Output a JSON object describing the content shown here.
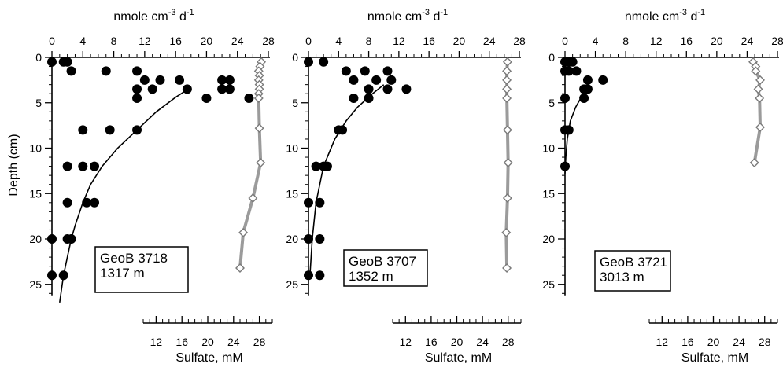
{
  "figure": {
    "top_axis_label": "nmole cm",
    "top_axis_sup1": "-3",
    "top_axis_mid": " d",
    "top_axis_sup2": "-1",
    "y_axis_label": "Depth (cm)",
    "bottom_axis_label": "Sulfate, mM",
    "colors": {
      "rate_points": "#000000",
      "sulfate_line": "#9b9b9b",
      "sulfate_marker": "#7a7a7a",
      "fit_line": "#000000"
    }
  },
  "chart_data": [
    {
      "type": "scatter",
      "site_label": "GeoB 3718",
      "water_depth": "1317 m",
      "top_axis": {
        "label": "nmole cm-3 d-1",
        "lim": [
          0,
          28
        ],
        "ticks": [
          "0",
          "4",
          "8",
          "12",
          "16",
          "20",
          "24",
          "28"
        ]
      },
      "depth_axis": {
        "label": "Depth (cm)",
        "lim": [
          0,
          25
        ],
        "inverted": true,
        "ticks": [
          "0",
          "5",
          "10",
          "15",
          "20",
          "25"
        ]
      },
      "sulfate_axis": {
        "label": "Sulfate, mM",
        "lim": [
          10,
          30
        ],
        "ticks": [
          "12",
          "16",
          "20",
          "24",
          "28"
        ]
      },
      "series": [
        {
          "name": "rate",
          "marker": "filled-circle",
          "points": [
            [
              0,
              0.5
            ],
            [
              1.5,
              0.5
            ],
            [
              2,
              0.5
            ],
            [
              2.5,
              1.5
            ],
            [
              7,
              1.5
            ],
            [
              11,
              1.5
            ],
            [
              12,
              2.5
            ],
            [
              14,
              2.5
            ],
            [
              16.5,
              2.5
            ],
            [
              11,
              3.5
            ],
            [
              13,
              3.5
            ],
            [
              17.5,
              3.5
            ],
            [
              11,
              4.5
            ],
            [
              20,
              4.5
            ],
            [
              25.5,
              4.5
            ],
            [
              4,
              8
            ],
            [
              7.5,
              8
            ],
            [
              11,
              8
            ],
            [
              2,
              12
            ],
            [
              4,
              12
            ],
            [
              5.5,
              12
            ],
            [
              2,
              16
            ],
            [
              4.5,
              16
            ],
            [
              5.5,
              16
            ],
            [
              0,
              20
            ],
            [
              2,
              20
            ],
            [
              2.5,
              20
            ],
            [
              0,
              24
            ],
            [
              1.5,
              24
            ],
            [
              22,
              2.5
            ],
            [
              23,
              2.5
            ],
            [
              22,
              3.5
            ],
            [
              23,
              3.5
            ]
          ]
        },
        {
          "name": "rate fit",
          "type": "line",
          "points": [
            [
              1,
              27
            ],
            [
              1.5,
              24
            ],
            [
              2,
              22
            ],
            [
              2.5,
              20
            ],
            [
              3,
              18.5
            ],
            [
              4,
              16
            ],
            [
              5,
              14
            ],
            [
              6.5,
              12
            ],
            [
              8.5,
              10
            ],
            [
              11,
              8
            ],
            [
              13.5,
              6
            ],
            [
              16,
              4.4
            ],
            [
              18,
              3.3
            ]
          ]
        },
        {
          "name": "sulfate",
          "marker": "open-diamond",
          "points": [
            [
              28.3,
              0.5
            ],
            [
              28.1,
              1.0
            ],
            [
              27.9,
              1.5
            ],
            [
              28.0,
              2.0
            ],
            [
              27.9,
              2.5
            ],
            [
              28.0,
              3.0
            ],
            [
              28.0,
              3.5
            ],
            [
              27.9,
              4.0
            ],
            [
              27.9,
              4.5
            ],
            [
              28.0,
              7.8
            ],
            [
              28.2,
              11.6
            ],
            [
              27.0,
              15.5
            ],
            [
              25.5,
              19.3
            ],
            [
              25.0,
              23.2
            ]
          ]
        }
      ]
    },
    {
      "type": "scatter",
      "site_label": "GeoB 3707",
      "water_depth": "1352 m",
      "top_axis": {
        "label": "nmole cm-3 d-1",
        "lim": [
          0,
          28
        ],
        "ticks": [
          "0",
          "4",
          "8",
          "12",
          "16",
          "20",
          "24",
          "28"
        ]
      },
      "depth_axis": {
        "label": "Depth (cm)",
        "lim": [
          0,
          25
        ],
        "inverted": true,
        "ticks": [
          "0",
          "5",
          "10",
          "15",
          "20",
          "25"
        ]
      },
      "sulfate_axis": {
        "label": "Sulfate, mM",
        "lim": [
          10,
          30
        ],
        "ticks": [
          "12",
          "16",
          "20",
          "24",
          "28"
        ]
      },
      "series": [
        {
          "name": "rate",
          "marker": "filled-circle",
          "points": [
            [
              0,
              0.5
            ],
            [
              2,
              0.5
            ],
            [
              5,
              1.5
            ],
            [
              7.5,
              1.5
            ],
            [
              10.5,
              1.5
            ],
            [
              6,
              2.5
            ],
            [
              9,
              2.5
            ],
            [
              11,
              2.5
            ],
            [
              8,
              3.5
            ],
            [
              10.5,
              3.5
            ],
            [
              13,
              3.5
            ],
            [
              6,
              4.5
            ],
            [
              8,
              4.5
            ],
            [
              4,
              8
            ],
            [
              4.5,
              8
            ],
            [
              1,
              12
            ],
            [
              2,
              12
            ],
            [
              2.5,
              12
            ],
            [
              0,
              16
            ],
            [
              1.5,
              16
            ],
            [
              0,
              20
            ],
            [
              1.5,
              20
            ],
            [
              0,
              24
            ],
            [
              1.5,
              24
            ]
          ]
        },
        {
          "name": "rate fit",
          "type": "line",
          "points": [
            [
              0.2,
              24
            ],
            [
              0.5,
              20
            ],
            [
              1,
              16
            ],
            [
              2,
              12
            ],
            [
              3.5,
              9
            ],
            [
              5,
              7
            ],
            [
              6.5,
              5.5
            ],
            [
              8.5,
              4
            ],
            [
              10,
              3
            ]
          ]
        },
        {
          "name": "sulfate",
          "marker": "open-diamond",
          "points": [
            [
              27.9,
              0.5
            ],
            [
              27.8,
              1.5
            ],
            [
              27.8,
              2.5
            ],
            [
              27.8,
              3.5
            ],
            [
              27.8,
              4.5
            ],
            [
              27.9,
              8
            ],
            [
              28.0,
              11.6
            ],
            [
              27.9,
              15.5
            ],
            [
              27.7,
              19.3
            ],
            [
              27.8,
              23.2
            ]
          ]
        }
      ]
    },
    {
      "type": "scatter",
      "site_label": "GeoB 3721",
      "water_depth": "3013 m",
      "top_axis": {
        "label": "nmole cm-3 d-1",
        "lim": [
          0,
          28
        ],
        "ticks": [
          "0",
          "4",
          "8",
          "12",
          "16",
          "20",
          "24",
          "28"
        ]
      },
      "depth_axis": {
        "label": "Depth (cm)",
        "lim": [
          0,
          25
        ],
        "inverted": true,
        "ticks": [
          "0",
          "5",
          "10",
          "15",
          "20",
          "25"
        ]
      },
      "sulfate_axis": {
        "label": "Sulfate, mM",
        "lim": [
          10,
          30
        ],
        "ticks": [
          "12",
          "16",
          "20",
          "24",
          "28"
        ]
      },
      "series": [
        {
          "name": "rate",
          "marker": "filled-circle",
          "points": [
            [
              0,
              0.5
            ],
            [
              0.5,
              0.5
            ],
            [
              1,
              0.5
            ],
            [
              0,
              1.5
            ],
            [
              0.5,
              1.5
            ],
            [
              1.5,
              1.5
            ],
            [
              3,
              2.5
            ],
            [
              5,
              2.5
            ],
            [
              2.5,
              3.5
            ],
            [
              3,
              3.5
            ],
            [
              0,
              4.5
            ],
            [
              2.5,
              4.5
            ],
            [
              0,
              8
            ],
            [
              0.5,
              8
            ],
            [
              0,
              12
            ]
          ]
        },
        {
          "name": "rate fit",
          "type": "line",
          "points": [
            [
              0,
              12.8
            ],
            [
              0.1,
              11
            ],
            [
              0.3,
              9
            ],
            [
              0.7,
              7
            ],
            [
              1.4,
              5.5
            ],
            [
              2,
              4.6
            ]
          ]
        },
        {
          "name": "sulfate",
          "marker": "open-diamond",
          "points": [
            [
              26.2,
              0.5
            ],
            [
              26.6,
              1.0
            ],
            [
              26.6,
              1.5
            ],
            [
              27.3,
              2.5
            ],
            [
              27.0,
              3.5
            ],
            [
              27.2,
              4.5
            ],
            [
              27.3,
              7.7
            ],
            [
              26.4,
              11.6
            ]
          ]
        }
      ]
    }
  ]
}
